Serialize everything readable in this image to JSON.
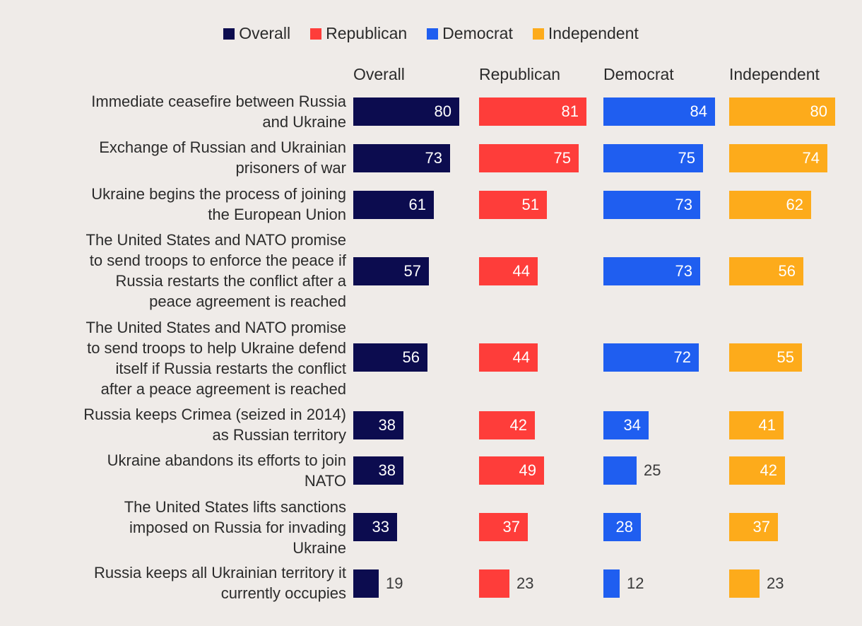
{
  "chart_data": {
    "type": "bar",
    "orientation": "horizontal",
    "title": "",
    "xlabel": "",
    "ylabel": "",
    "xlim": [
      0,
      100
    ],
    "legend_position": "top-center",
    "categories": [
      "Immediate ceasefire between Russia and Ukraine",
      "Exchange of Russian and Ukrainian prisoners of war",
      "Ukraine begins the process of joining the European Union",
      "The United States and NATO promise to send troops to enforce the peace if Russia restarts the conflict after a peace agreement is reached",
      "The United States and NATO promise to send troops to help Ukraine defend itself if Russia restarts the conflict after a peace agreement is reached",
      "Russia keeps Crimea (seized in 2014) as Russian territory",
      "Ukraine abandons its efforts to join NATO",
      "The United States lifts sanctions imposed on Russia for invading Ukraine",
      "Russia keeps all Ukrainian territory it currently occupies"
    ],
    "series": [
      {
        "name": "Overall",
        "color": "#0c0c4f",
        "values": [
          80,
          73,
          61,
          57,
          56,
          38,
          38,
          33,
          19
        ]
      },
      {
        "name": "Republican",
        "color": "#fe3d3a",
        "values": [
          81,
          75,
          51,
          44,
          44,
          42,
          49,
          37,
          23
        ]
      },
      {
        "name": "Democrat",
        "color": "#1f5ef0",
        "values": [
          84,
          75,
          73,
          73,
          72,
          34,
          25,
          28,
          12
        ]
      },
      {
        "name": "Independent",
        "color": "#fdab1b",
        "values": [
          80,
          74,
          62,
          56,
          55,
          41,
          42,
          37,
          23
        ]
      }
    ]
  }
}
